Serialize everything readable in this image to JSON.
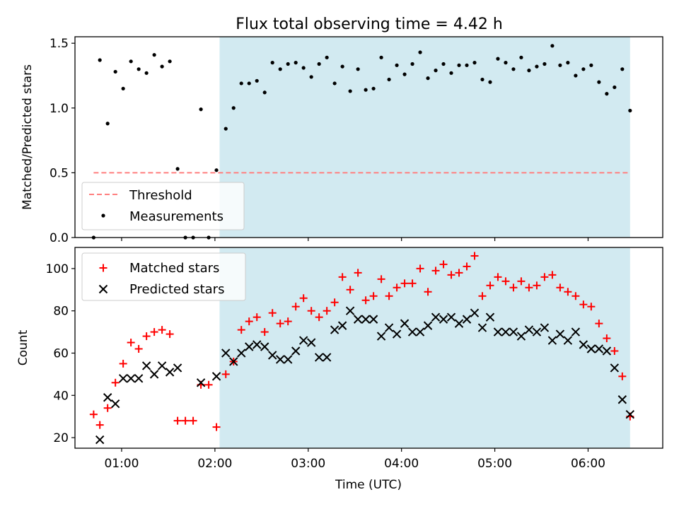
{
  "title": "Flux total observing time = 4.42 h",
  "colors": {
    "shade": "#add8e6",
    "threshold": "#ff7f7f",
    "measurement": "#000000",
    "matched": "#ff0000",
    "predicted": "#000000"
  },
  "chart_data": [
    {
      "type": "scatter",
      "ylabel": "Matched/Predicted stars",
      "ylim": [
        0,
        1.55
      ],
      "yticks": [
        0.0,
        0.5,
        1.0,
        1.5
      ],
      "ytick_labels": [
        "0.0",
        "0.5",
        "1.0",
        "1.5"
      ],
      "shaded_region": {
        "start": "02:03",
        "end": "06:27"
      },
      "threshold": {
        "name": "Threshold",
        "value": 0.5,
        "start": "00:42",
        "end": "06:27"
      },
      "legend": {
        "position": "lower-left",
        "entries": [
          "Threshold",
          "Measurements"
        ]
      },
      "series": [
        {
          "name": "Measurements",
          "points": [
            [
              "00:42",
              0.0
            ],
            [
              "00:46",
              1.37
            ],
            [
              "00:51",
              0.88
            ],
            [
              "00:56",
              1.28
            ],
            [
              "01:01",
              1.15
            ],
            [
              "01:06",
              1.36
            ],
            [
              "01:11",
              1.3
            ],
            [
              "01:16",
              1.27
            ],
            [
              "01:21",
              1.41
            ],
            [
              "01:26",
              1.32
            ],
            [
              "01:31",
              1.36
            ],
            [
              "01:36",
              0.53
            ],
            [
              "01:41",
              0.0
            ],
            [
              "01:46",
              0.0
            ],
            [
              "01:51",
              0.99
            ],
            [
              "01:56",
              0.0
            ],
            [
              "02:01",
              0.52
            ],
            [
              "02:07",
              0.84
            ],
            [
              "02:12",
              1.0
            ],
            [
              "02:17",
              1.19
            ],
            [
              "02:22",
              1.19
            ],
            [
              "02:27",
              1.21
            ],
            [
              "02:32",
              1.12
            ],
            [
              "02:37",
              1.35
            ],
            [
              "02:42",
              1.3
            ],
            [
              "02:47",
              1.34
            ],
            [
              "02:52",
              1.35
            ],
            [
              "02:57",
              1.31
            ],
            [
              "03:02",
              1.24
            ],
            [
              "03:07",
              1.34
            ],
            [
              "03:12",
              1.39
            ],
            [
              "03:17",
              1.19
            ],
            [
              "03:22",
              1.32
            ],
            [
              "03:27",
              1.13
            ],
            [
              "03:32",
              1.3
            ],
            [
              "03:37",
              1.14
            ],
            [
              "03:42",
              1.15
            ],
            [
              "03:47",
              1.39
            ],
            [
              "03:52",
              1.22
            ],
            [
              "03:57",
              1.33
            ],
            [
              "04:02",
              1.26
            ],
            [
              "04:07",
              1.34
            ],
            [
              "04:12",
              1.43
            ],
            [
              "04:17",
              1.23
            ],
            [
              "04:22",
              1.29
            ],
            [
              "04:27",
              1.34
            ],
            [
              "04:32",
              1.27
            ],
            [
              "04:37",
              1.33
            ],
            [
              "04:42",
              1.33
            ],
            [
              "04:47",
              1.35
            ],
            [
              "04:52",
              1.22
            ],
            [
              "04:57",
              1.2
            ],
            [
              "05:02",
              1.38
            ],
            [
              "05:07",
              1.35
            ],
            [
              "05:12",
              1.3
            ],
            [
              "05:17",
              1.39
            ],
            [
              "05:22",
              1.29
            ],
            [
              "05:27",
              1.32
            ],
            [
              "05:32",
              1.34
            ],
            [
              "05:37",
              1.48
            ],
            [
              "05:42",
              1.33
            ],
            [
              "05:47",
              1.35
            ],
            [
              "05:52",
              1.25
            ],
            [
              "05:57",
              1.3
            ],
            [
              "06:02",
              1.33
            ],
            [
              "06:07",
              1.2
            ],
            [
              "06:12",
              1.11
            ],
            [
              "06:17",
              1.16
            ],
            [
              "06:22",
              1.3
            ],
            [
              "06:27",
              0.98
            ]
          ]
        }
      ]
    },
    {
      "type": "scatter",
      "xlabel": "Time (UTC)",
      "ylabel": "Count",
      "xlim": [
        "00:30",
        "06:48"
      ],
      "ylim": [
        15,
        110
      ],
      "xtick_labels": [
        "01:00",
        "02:00",
        "03:00",
        "04:00",
        "05:00",
        "06:00"
      ],
      "yticks": [
        20,
        40,
        60,
        80,
        100
      ],
      "ytick_labels": [
        "20",
        "40",
        "60",
        "80",
        "100"
      ],
      "shaded_region": {
        "start": "02:03",
        "end": "06:27"
      },
      "legend": {
        "position": "upper-left",
        "entries": [
          "Matched stars",
          "Predicted stars"
        ]
      },
      "series": [
        {
          "name": "Matched stars",
          "marker": "plus",
          "points": [
            [
              "00:42",
              31
            ],
            [
              "00:46",
              26
            ],
            [
              "00:51",
              34
            ],
            [
              "00:56",
              46
            ],
            [
              "01:01",
              55
            ],
            [
              "01:06",
              65
            ],
            [
              "01:11",
              62
            ],
            [
              "01:16",
              68
            ],
            [
              "01:21",
              70
            ],
            [
              "01:26",
              71
            ],
            [
              "01:31",
              69
            ],
            [
              "01:36",
              28
            ],
            [
              "01:41",
              28
            ],
            [
              "01:46",
              28
            ],
            [
              "01:51",
              45
            ],
            [
              "01:56",
              45
            ],
            [
              "02:01",
              25
            ],
            [
              "02:07",
              50
            ],
            [
              "02:12",
              56
            ],
            [
              "02:17",
              71
            ],
            [
              "02:22",
              75
            ],
            [
              "02:27",
              77
            ],
            [
              "02:32",
              70
            ],
            [
              "02:37",
              79
            ],
            [
              "02:42",
              74
            ],
            [
              "02:47",
              75
            ],
            [
              "02:52",
              82
            ],
            [
              "02:57",
              86
            ],
            [
              "03:02",
              80
            ],
            [
              "03:07",
              77
            ],
            [
              "03:12",
              80
            ],
            [
              "03:17",
              84
            ],
            [
              "03:22",
              96
            ],
            [
              "03:27",
              90
            ],
            [
              "03:32",
              98
            ],
            [
              "03:37",
              85
            ],
            [
              "03:42",
              87
            ],
            [
              "03:47",
              95
            ],
            [
              "03:52",
              87
            ],
            [
              "03:57",
              91
            ],
            [
              "04:02",
              93
            ],
            [
              "04:07",
              93
            ],
            [
              "04:12",
              100
            ],
            [
              "04:17",
              89
            ],
            [
              "04:22",
              99
            ],
            [
              "04:27",
              102
            ],
            [
              "04:32",
              97
            ],
            [
              "04:37",
              98
            ],
            [
              "04:42",
              101
            ],
            [
              "04:47",
              106
            ],
            [
              "04:52",
              87
            ],
            [
              "04:57",
              92
            ],
            [
              "05:02",
              96
            ],
            [
              "05:07",
              94
            ],
            [
              "05:12",
              91
            ],
            [
              "05:17",
              94
            ],
            [
              "05:22",
              91
            ],
            [
              "05:27",
              92
            ],
            [
              "05:32",
              96
            ],
            [
              "05:37",
              97
            ],
            [
              "05:42",
              91
            ],
            [
              "05:47",
              89
            ],
            [
              "05:52",
              87
            ],
            [
              "05:57",
              83
            ],
            [
              "06:02",
              82
            ],
            [
              "06:07",
              74
            ],
            [
              "06:12",
              67
            ],
            [
              "06:17",
              61
            ],
            [
              "06:22",
              49
            ],
            [
              "06:27",
              30
            ]
          ]
        },
        {
          "name": "Predicted stars",
          "marker": "x",
          "points": [
            [
              "00:46",
              19
            ],
            [
              "00:51",
              39
            ],
            [
              "00:56",
              36
            ],
            [
              "01:01",
              48
            ],
            [
              "01:06",
              48
            ],
            [
              "01:11",
              48
            ],
            [
              "01:16",
              54
            ],
            [
              "01:21",
              50
            ],
            [
              "01:26",
              54
            ],
            [
              "01:31",
              51
            ],
            [
              "01:36",
              53
            ],
            [
              "01:51",
              46
            ],
            [
              "02:01",
              49
            ],
            [
              "02:07",
              60
            ],
            [
              "02:12",
              56
            ],
            [
              "02:17",
              60
            ],
            [
              "02:22",
              63
            ],
            [
              "02:27",
              64
            ],
            [
              "02:32",
              63
            ],
            [
              "02:37",
              59
            ],
            [
              "02:42",
              57
            ],
            [
              "02:47",
              57
            ],
            [
              "02:52",
              61
            ],
            [
              "02:57",
              66
            ],
            [
              "03:02",
              65
            ],
            [
              "03:07",
              58
            ],
            [
              "03:12",
              58
            ],
            [
              "03:17",
              71
            ],
            [
              "03:22",
              73
            ],
            [
              "03:27",
              80
            ],
            [
              "03:32",
              76
            ],
            [
              "03:37",
              76
            ],
            [
              "03:42",
              76
            ],
            [
              "03:47",
              68
            ],
            [
              "03:52",
              72
            ],
            [
              "03:57",
              69
            ],
            [
              "04:02",
              74
            ],
            [
              "04:07",
              70
            ],
            [
              "04:12",
              70
            ],
            [
              "04:17",
              73
            ],
            [
              "04:22",
              77
            ],
            [
              "04:27",
              76
            ],
            [
              "04:32",
              77
            ],
            [
              "04:37",
              74
            ],
            [
              "04:42",
              76
            ],
            [
              "04:47",
              79
            ],
            [
              "04:52",
              72
            ],
            [
              "04:57",
              77
            ],
            [
              "05:02",
              70
            ],
            [
              "05:07",
              70
            ],
            [
              "05:12",
              70
            ],
            [
              "05:17",
              68
            ],
            [
              "05:22",
              71
            ],
            [
              "05:27",
              70
            ],
            [
              "05:32",
              72
            ],
            [
              "05:37",
              66
            ],
            [
              "05:42",
              69
            ],
            [
              "05:47",
              66
            ],
            [
              "05:52",
              70
            ],
            [
              "05:57",
              64
            ],
            [
              "06:02",
              62
            ],
            [
              "06:07",
              62
            ],
            [
              "06:12",
              61
            ],
            [
              "06:17",
              53
            ],
            [
              "06:22",
              38
            ],
            [
              "06:27",
              31
            ]
          ]
        }
      ]
    }
  ]
}
